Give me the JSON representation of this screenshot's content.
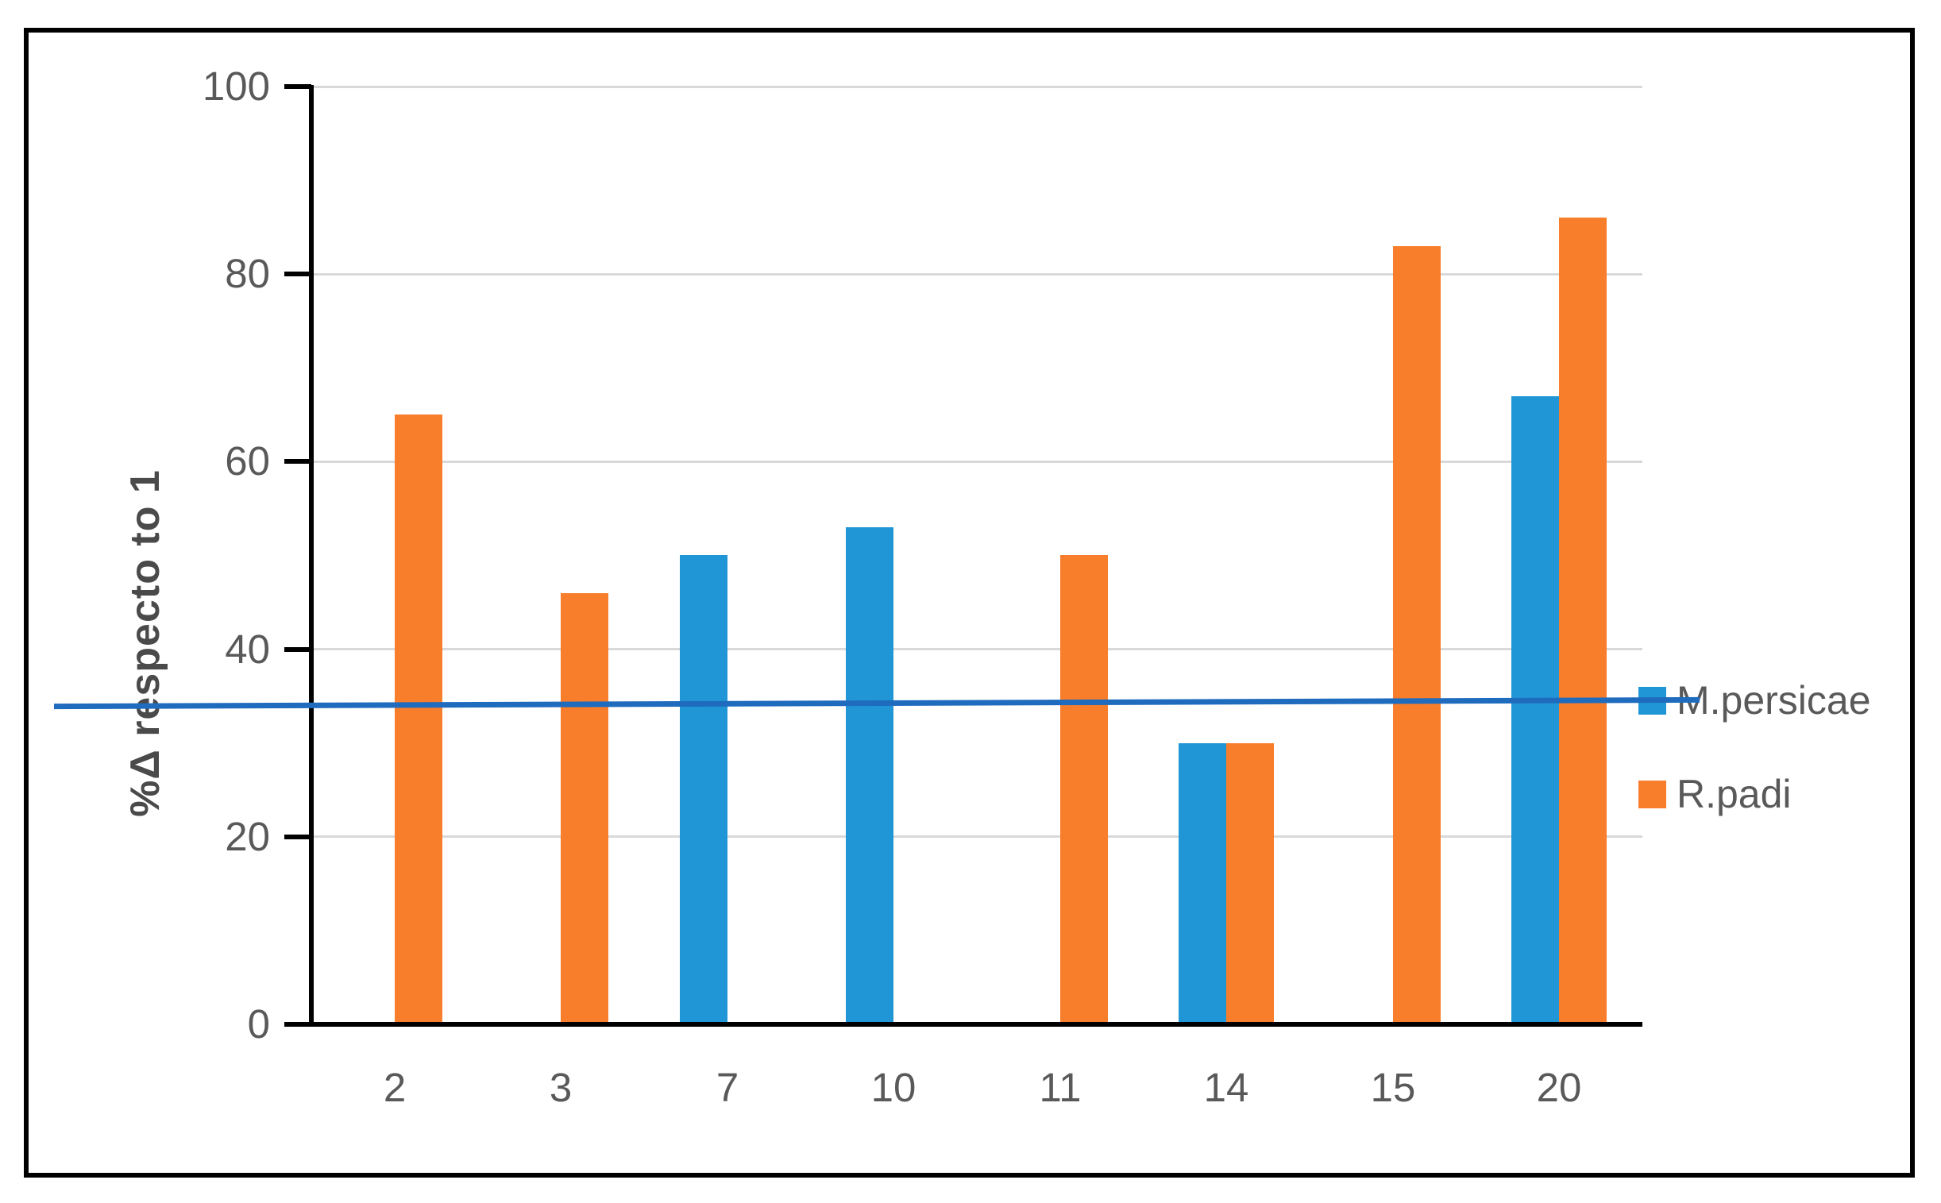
{
  "chart_data": {
    "type": "bar",
    "title": "",
    "xlabel": "",
    "ylabel": "%Δ respecto to 1",
    "categories": [
      "2",
      "3",
      "7",
      "10",
      "11",
      "14",
      "15",
      "20"
    ],
    "series": [
      {
        "name": "M.persicae",
        "color": "#2196D6",
        "values": [
          null,
          null,
          50,
          53,
          null,
          30,
          null,
          67
        ]
      },
      {
        "name": "R.padi",
        "color": "#F97E2B",
        "values": [
          65,
          46,
          null,
          null,
          50,
          30,
          83,
          86
        ]
      }
    ],
    "reference_line": {
      "color": "#1F6BBD",
      "value_start": 33.9,
      "value_end": 34.6,
      "description": "thin dark-blue horizontal line spanning the chart at about 34, ending at the M.persicae legend entry"
    },
    "y_axis": {
      "min": 0,
      "max": 100,
      "tick_interval": 20,
      "ticks": [
        0,
        20,
        40,
        60,
        80,
        100
      ]
    },
    "x_axis": {
      "ticks_visible": false
    },
    "grid": true,
    "legend_position": "middle-right",
    "bar_layout": "clustered, blue series in left half-slot, orange series in right half-slot, no gap between paired bars"
  },
  "legend": {
    "items": [
      {
        "label": "M.persicae",
        "swatch_color": "#2196D6"
      },
      {
        "label": "R.padi",
        "swatch_color": "#F97E2B"
      }
    ]
  },
  "colors": {
    "background": "#FFFFFF",
    "frame_border": "#000000",
    "axis": "#000000",
    "gridline": "#D9D9D9",
    "tick_label": "#595959",
    "axis_title": "#4A4A4A",
    "legend_text": "#595959",
    "bar_blue": "#2196D6",
    "bar_orange": "#F97E2B",
    "reference_line_blue": "#1F6BBD"
  }
}
